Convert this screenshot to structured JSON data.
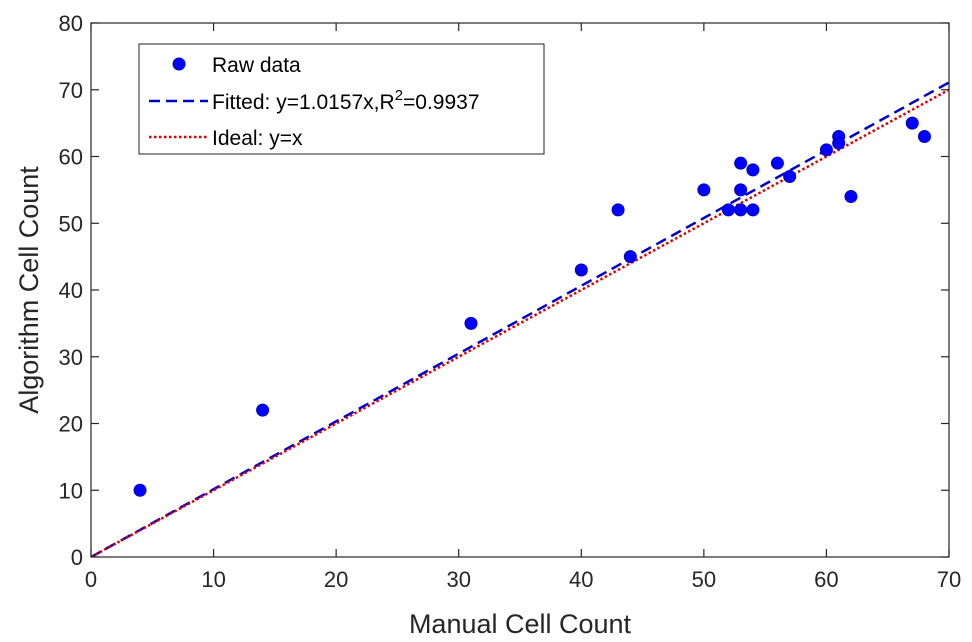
{
  "chart_data": {
    "type": "scatter",
    "xlabel": "Manual Cell Count",
    "ylabel": "Algorithm Cell Count",
    "xlim": [
      0,
      70
    ],
    "ylim": [
      0,
      80
    ],
    "xticks": [
      0,
      10,
      20,
      30,
      40,
      50,
      60,
      70
    ],
    "yticks": [
      0,
      10,
      20,
      30,
      40,
      50,
      60,
      70,
      80
    ],
    "grid": false,
    "legend_placement": "top-left",
    "series": [
      {
        "name": "Raw data",
        "kind": "markers",
        "color": "#0000ff",
        "points": [
          [
            4,
            10
          ],
          [
            14,
            22
          ],
          [
            31,
            35
          ],
          [
            40,
            43
          ],
          [
            43,
            52
          ],
          [
            44,
            45
          ],
          [
            50,
            55
          ],
          [
            52,
            52
          ],
          [
            53,
            59
          ],
          [
            53,
            55
          ],
          [
            53,
            52
          ],
          [
            54,
            58
          ],
          [
            54,
            52
          ],
          [
            56,
            59
          ],
          [
            57,
            57
          ],
          [
            60,
            61
          ],
          [
            61,
            63
          ],
          [
            61,
            62
          ],
          [
            62,
            54
          ],
          [
            67,
            65
          ],
          [
            68,
            63
          ]
        ]
      },
      {
        "name": "Fitted: y=1.0157x,R",
        "name_sup": "2",
        "name_suffix": "=0.9937",
        "kind": "dashed-line",
        "color": "#0000cc",
        "slope": 1.0157
      },
      {
        "name": "Ideal: y=x",
        "kind": "dotted-line",
        "color": "#dd0000",
        "slope": 1
      }
    ]
  }
}
